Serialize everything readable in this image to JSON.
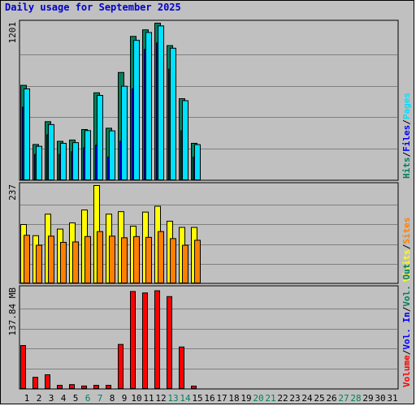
{
  "chart_data": {
    "type": "bar",
    "title": "Daily usage for September 2025",
    "days": [
      "1",
      "2",
      "3",
      "4",
      "5",
      "6",
      "7",
      "8",
      "9",
      "10",
      "11",
      "12",
      "13",
      "14",
      "15",
      "16",
      "17",
      "18",
      "19",
      "20",
      "21",
      "22",
      "23",
      "24",
      "25",
      "26",
      "27",
      "28",
      "29",
      "30",
      "31"
    ],
    "weekend_days": [
      "6",
      "7",
      "13",
      "14",
      "20",
      "21",
      "27",
      "28"
    ],
    "colors": {
      "hits": "#00805c",
      "files": "#0000ff",
      "pages": "#00e0ff",
      "visits": "#ffff00",
      "sites": "#ff8000",
      "kbytes": "#ff0000",
      "weekend_label": "#00805c",
      "weekday_label": "#000000",
      "background": "#c0c0c0",
      "grid": "#808080"
    },
    "panels": [
      {
        "id": "hits",
        "ymax_label": "1201",
        "ymax": 1201,
        "legend": [
          {
            "text": "Hits",
            "color": "#00805c"
          },
          {
            "text": "/",
            "color": "#000000"
          },
          {
            "text": "Files",
            "color": "#0000ff"
          },
          {
            "text": "/",
            "color": "#000000"
          },
          {
            "text": "Pages",
            "color": "#00e0ff"
          }
        ],
        "series": [
          {
            "name": "Hits",
            "color": "#00805c",
            "values": [
              727,
              276,
              450,
              300,
              310,
              390,
              670,
              400,
              825,
              1100,
              1150,
              1201,
              1030,
              625,
              285,
              0,
              0,
              0,
              0,
              0,
              0,
              0,
              0,
              0,
              0,
              0,
              0,
              0,
              0,
              0,
              0
            ]
          },
          {
            "name": "Files",
            "color": "#0000ff",
            "values": [
              560,
              200,
              350,
              200,
              220,
              250,
              270,
              180,
              300,
              700,
              1000,
              1050,
              850,
              380,
              180,
              0,
              0,
              0,
              0,
              0,
              0,
              0,
              0,
              0,
              0,
              0,
              0,
              0,
              0,
              0,
              0
            ]
          },
          {
            "name": "Pages",
            "color": "#00e0ff",
            "values": [
              700,
              262,
              428,
              285,
              290,
              382,
              650,
              380,
              720,
              1070,
              1130,
              1180,
              1010,
              610,
              275,
              0,
              0,
              0,
              0,
              0,
              0,
              0,
              0,
              0,
              0,
              0,
              0,
              0,
              0,
              0,
              0
            ]
          }
        ]
      },
      {
        "id": "visits",
        "ymax_label": "237",
        "ymax": 237,
        "legend": [
          {
            "text": "Visits",
            "color": "#ffff00"
          },
          {
            "text": "/",
            "color": "#000000"
          },
          {
            "text": "Sites",
            "color": "#ff8000"
          }
        ],
        "series": [
          {
            "name": "Visits",
            "color": "#ffff00",
            "values": [
              143,
              116,
              168,
              132,
              147,
              178,
              237,
              168,
              174,
              139,
              173,
              187,
              151,
              136,
              136,
              0,
              0,
              0,
              0,
              0,
              0,
              0,
              0,
              0,
              0,
              0,
              0,
              0,
              0,
              0,
              0
            ]
          },
          {
            "name": "Sites",
            "color": "#ff8000",
            "values": [
              117,
              93,
              115,
              100,
              101,
              114,
              126,
              115,
              111,
              114,
              112,
              126,
              109,
              93,
              105,
              0,
              0,
              0,
              0,
              0,
              0,
              0,
              0,
              0,
              0,
              0,
              0,
              0,
              0,
              0,
              0
            ]
          }
        ]
      },
      {
        "id": "volume",
        "ymax_label": "137.84 MB",
        "ymax": 137.84,
        "legend": [
          {
            "text": "Volume",
            "color": "#ff0000"
          },
          {
            "text": "/",
            "color": "#000000"
          },
          {
            "text": "Vol. In",
            "color": "#0000ff"
          },
          {
            "text": "/",
            "color": "#000000"
          },
          {
            "text": "Vol. Out",
            "color": "#00805c"
          }
        ],
        "series": [
          {
            "name": "Volume",
            "color": "#ff0000",
            "values": [
              60,
              16.5,
              20,
              5.5,
              6.5,
              4.6,
              5.5,
              5.5,
              61.5,
              134,
              132,
              135,
              127,
              58,
              4.5,
              0,
              0,
              0,
              0,
              0,
              0,
              0,
              0,
              0,
              0,
              0,
              0,
              0,
              0,
              0,
              0
            ]
          }
        ]
      }
    ]
  }
}
